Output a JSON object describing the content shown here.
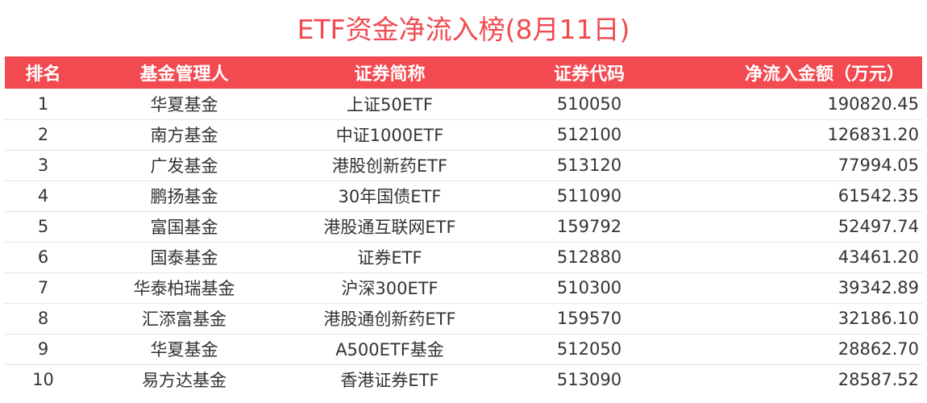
{
  "title": "ETF资金净流入榜(8月11日)",
  "colors": {
    "accent": "#f24a50",
    "header_text": "#ffffff",
    "body_text": "#333333",
    "row_divider": "#e4e4e4"
  },
  "table": {
    "headers": [
      "排名",
      "基金管理人",
      "证券简称",
      "证券代码",
      "净流入金额（万元）"
    ],
    "rows": [
      [
        "1",
        "华夏基金",
        "上证50ETF",
        "510050",
        "190820.45"
      ],
      [
        "2",
        "南方基金",
        "中证1000ETF",
        "512100",
        "126831.20"
      ],
      [
        "3",
        "广发基金",
        "港股创新药ETF",
        "513120",
        "77994.05"
      ],
      [
        "4",
        "鹏扬基金",
        "30年国债ETF",
        "511090",
        "61542.35"
      ],
      [
        "5",
        "富国基金",
        "港股通互联网ETF",
        "159792",
        "52497.74"
      ],
      [
        "6",
        "国泰基金",
        "证券ETF",
        "512880",
        "43461.20"
      ],
      [
        "7",
        "华泰柏瑞基金",
        "沪深300ETF",
        "510300",
        "39342.89"
      ],
      [
        "8",
        "汇添富基金",
        "港股通创新药ETF",
        "159570",
        "32186.10"
      ],
      [
        "9",
        "华夏基金",
        "A500ETF基金",
        "512050",
        "28862.70"
      ],
      [
        "10",
        "易方达基金",
        "香港证券ETF",
        "513090",
        "28587.52"
      ]
    ]
  }
}
